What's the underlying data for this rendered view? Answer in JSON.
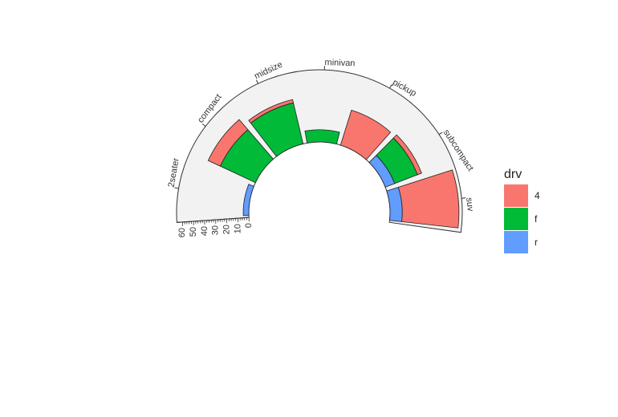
{
  "chart_data": {
    "type": "bar",
    "subtype": "stacked-radial-bar",
    "categories": [
      "2seater",
      "compact",
      "midsize",
      "minivan",
      "pickup",
      "subcompact",
      "suv"
    ],
    "series": [
      {
        "name": "r",
        "color": "#619CFF",
        "values": [
          5,
          0,
          0,
          0,
          0,
          9,
          11
        ]
      },
      {
        "name": "f",
        "color": "#00BA38",
        "values": [
          0,
          35,
          38,
          11,
          0,
          22,
          0
        ]
      },
      {
        "name": "4",
        "color": "#F8766D",
        "values": [
          0,
          12,
          3,
          0,
          33,
          4,
          51
        ]
      }
    ],
    "radial_axis": {
      "ticks": [
        "0",
        "10",
        "20",
        "30",
        "40",
        "50",
        "60"
      ],
      "range": [
        0,
        65
      ]
    },
    "legend": {
      "title": "drv",
      "entries": [
        "4",
        "f",
        "r"
      ],
      "position": "right"
    },
    "panel_background": "#F2F2F2",
    "grid": false,
    "title": "",
    "xlabel": "",
    "ylabel": ""
  }
}
